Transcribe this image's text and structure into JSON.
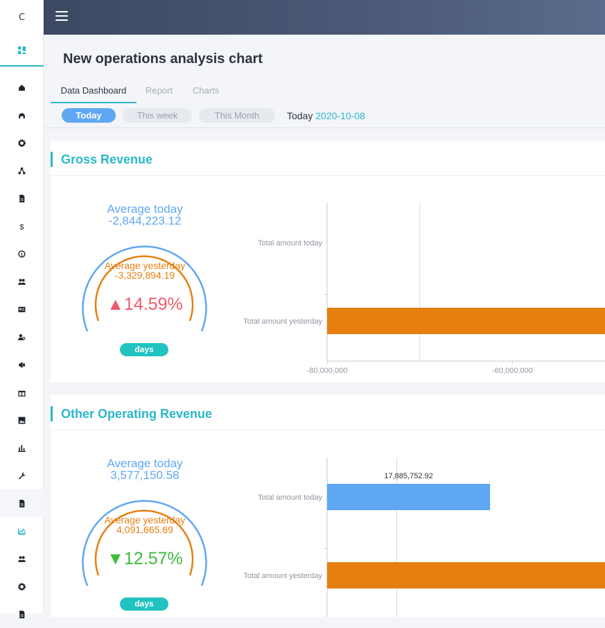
{
  "app": {
    "logo": "C"
  },
  "sidebar": {
    "items": [
      {
        "icon": "home-icon"
      },
      {
        "icon": "headset-icon"
      },
      {
        "icon": "gear-icon"
      },
      {
        "icon": "network-icon"
      },
      {
        "icon": "document-icon"
      },
      {
        "icon": "dollar-icon"
      },
      {
        "icon": "coin-icon"
      },
      {
        "icon": "users-icon"
      },
      {
        "icon": "id-card-icon"
      },
      {
        "icon": "user-search-icon"
      },
      {
        "icon": "megaphone-icon"
      },
      {
        "icon": "gift-icon"
      },
      {
        "icon": "image-icon"
      },
      {
        "icon": "bar-chart-icon"
      },
      {
        "icon": "wrench-icon"
      },
      {
        "icon": "document-icon"
      },
      {
        "icon": "area-chart-icon"
      },
      {
        "icon": "users-icon"
      },
      {
        "icon": "gear-icon"
      },
      {
        "icon": "document-icon"
      }
    ],
    "active_index": 15,
    "accent_index": 16
  },
  "colors": {
    "accent": "#2ab8c9",
    "today": "#5fa7f2",
    "yesterday": "#e67e10",
    "up": "#ef5a6f",
    "down": "#3dbb3d"
  },
  "page": {
    "title": "New operations analysis chart"
  },
  "tabs": [
    {
      "label": "Data Dashboard"
    },
    {
      "label": "Report"
    },
    {
      "label": "Charts"
    }
  ],
  "periods": [
    {
      "label": "Today"
    },
    {
      "label": "This week"
    },
    {
      "label": "This Month"
    }
  ],
  "today": {
    "label": "Today",
    "date": "2020-10-08"
  },
  "cards": [
    {
      "title": "Gross Revenue",
      "avg_today_label": "Average today",
      "avg_today_value": "-2,844,223.12",
      "avg_yesterday_label": "Average yesterday",
      "avg_yesterday_value": "-3,329,894.19",
      "change": "▲14.59%",
      "direction": "up",
      "days_label": "days"
    },
    {
      "title": "Other Operating Revenue",
      "avg_today_label": "Average today",
      "avg_today_value": "3,577,150.58",
      "avg_yesterday_label": "Average yesterday",
      "avg_yesterday_value": "4,091,665.69",
      "change": "▼12.57%",
      "direction": "down",
      "days_label": "days"
    }
  ],
  "chart_data": [
    {
      "type": "bar",
      "orientation": "horizontal",
      "categories": [
        "Total amount today",
        "Total amount yesterday"
      ],
      "xaxis_ticks": [
        "-80,000,000",
        "-60,000,000"
      ],
      "xlim_visible": [
        -80000000,
        -50000000
      ],
      "series": [
        {
          "values": [
            null,
            -50000000
          ],
          "colors": [
            "#5fa7f2",
            "#e67e10"
          ]
        }
      ],
      "bar_labels": [],
      "grid": true
    },
    {
      "type": "bar",
      "orientation": "horizontal",
      "categories": [
        "Total amount today",
        "Total amount yesterday"
      ],
      "xaxis_ticks": [],
      "xlim_visible": [
        0,
        30500000
      ],
      "series": [
        {
          "values": [
            17885752.92,
            30500000
          ],
          "colors": [
            "#5fa7f2",
            "#e67e10"
          ]
        }
      ],
      "bar_labels": [
        "17,885,752.92",
        ""
      ],
      "grid": true
    }
  ]
}
